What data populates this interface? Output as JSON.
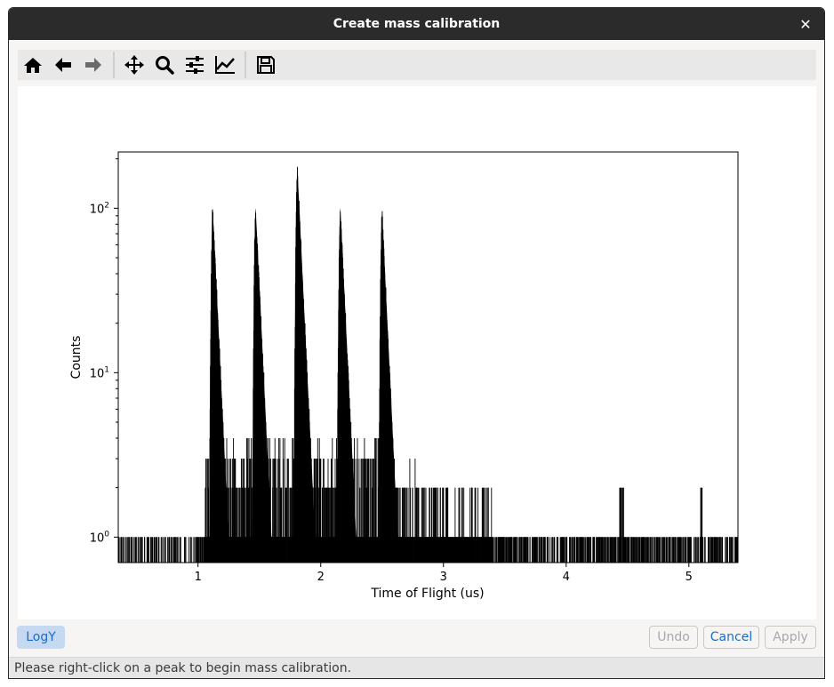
{
  "window": {
    "title": "Create mass calibration"
  },
  "toolbar": {
    "buttons": [
      {
        "icon": "home-icon"
      },
      {
        "icon": "back-arrow-icon"
      },
      {
        "icon": "forward-arrow-icon"
      },
      {
        "icon": "pan-icon"
      },
      {
        "icon": "zoom-icon"
      },
      {
        "icon": "configure-subplots-icon"
      },
      {
        "icon": "edit-axis-icon"
      },
      {
        "icon": "save-icon"
      }
    ]
  },
  "chart_data": {
    "type": "bar",
    "xlabel": "Time of Flight (us)",
    "ylabel": "Counts",
    "xlim": [
      0.35,
      5.4
    ],
    "ylim": [
      0.7,
      220
    ],
    "yscale": "log",
    "xticks": [
      "1",
      "2",
      "3",
      "4",
      "5"
    ],
    "yticks": [
      "10^0",
      "10^1",
      "10^2"
    ],
    "peaks": [
      {
        "x": 1.12,
        "max": 100
      },
      {
        "x": 1.47,
        "max": 100
      },
      {
        "x": 1.81,
        "max": 175
      },
      {
        "x": 2.16,
        "max": 100
      },
      {
        "x": 2.5,
        "max": 95
      }
    ],
    "isolated_spikes": [
      {
        "x": 4.44,
        "y": 2
      },
      {
        "x": 4.46,
        "y": 2
      },
      {
        "x": 5.1,
        "y": 2
      }
    ],
    "color": "#000000"
  },
  "buttons": {
    "logy": "LogY",
    "undo": "Undo",
    "cancel": "Cancel",
    "apply": "Apply"
  },
  "status": "Please right-click on a peak to begin mass calibration."
}
